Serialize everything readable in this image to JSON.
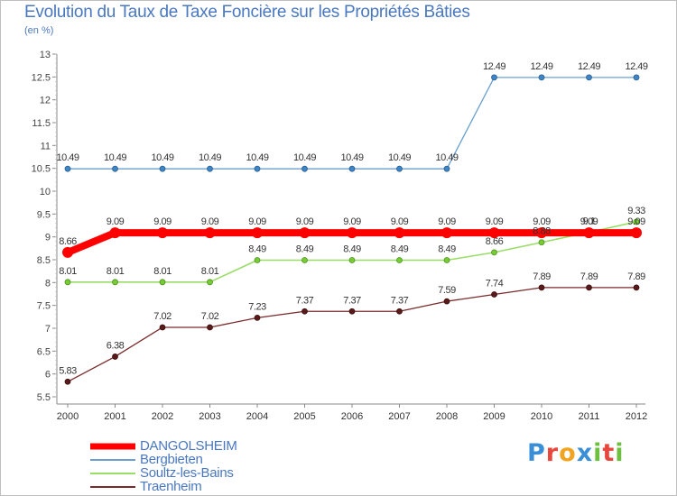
{
  "header": {
    "title": "Evolution du Taux de Taxe Foncière sur les Propriétés Bâties",
    "unit": "(en %)"
  },
  "logo": {
    "text": "Proxiti",
    "letters": [
      "P",
      "r",
      "o",
      "x",
      "i",
      "t",
      "i"
    ],
    "colors": [
      "#3a8fd6",
      "#e8483c",
      "#f2a31f",
      "#3a8fd6",
      "#6cbf3f",
      "#e8483c",
      "#6cbf3f"
    ]
  },
  "chart_data": {
    "type": "line",
    "title": "Evolution du Taux de Taxe Foncière sur les Propriétés Bâties",
    "ylabel": "(en %)",
    "xlabel": "",
    "ylim": [
      5.5,
      13
    ],
    "yticks": [
      "5.5",
      "6",
      "6.5",
      "7",
      "7.5",
      "8",
      "8.5",
      "9",
      "9.5",
      "10",
      "10.5",
      "11",
      "11.5",
      "12",
      "12.5",
      "13"
    ],
    "categories": [
      "2000",
      "2001",
      "2002",
      "2003",
      "2004",
      "2005",
      "2006",
      "2007",
      "2008",
      "2009",
      "2010",
      "2011",
      "2012"
    ],
    "grid": false,
    "series": [
      {
        "name": "DANGOLSHEIM",
        "color": "#ff0000",
        "values": [
          8.66,
          9.09,
          9.09,
          9.09,
          9.09,
          9.09,
          9.09,
          9.09,
          9.09,
          9.09,
          9.09,
          9.09,
          9.09
        ],
        "labels": [
          "8.66",
          "9.09",
          "9.09",
          "9.09",
          "9.09",
          "9.09",
          "9.09",
          "9.09",
          "9.09",
          "9.09",
          "9.09",
          "9.09",
          "9.09"
        ]
      },
      {
        "name": "Bergbieten",
        "color": "#6a9fcf",
        "values": [
          10.49,
          10.49,
          10.49,
          10.49,
          10.49,
          10.49,
          10.49,
          10.49,
          10.49,
          12.49,
          12.49,
          12.49,
          12.49
        ],
        "labels": [
          "10.49",
          "10.49",
          "10.49",
          "10.49",
          "10.49",
          "10.49",
          "10.49",
          "10.49",
          "10.49",
          "12.49",
          "12.49",
          "12.49",
          "12.49"
        ]
      },
      {
        "name": "Soultz-les-Bains",
        "color": "#99dd66",
        "values": [
          8.01,
          8.01,
          8.01,
          8.01,
          8.49,
          8.49,
          8.49,
          8.49,
          8.49,
          8.66,
          8.88,
          9.1,
          9.33
        ],
        "labels": [
          "8.01",
          "8.01",
          "8.01",
          "8.01",
          "8.49",
          "8.49",
          "8.49",
          "8.49",
          "8.49",
          "8.66",
          "8.88",
          "9.1",
          "9.33"
        ]
      },
      {
        "name": "Traenheim",
        "color": "#7a2a2a",
        "values": [
          5.83,
          6.38,
          7.02,
          7.02,
          7.23,
          7.37,
          7.37,
          7.37,
          7.59,
          7.74,
          7.89,
          7.89,
          7.89
        ],
        "labels": [
          "5.83",
          "6.38",
          "7.02",
          "7.02",
          "7.23",
          "7.37",
          "7.37",
          "7.37",
          "7.59",
          "7.74",
          "7.89",
          "7.89",
          "7.89"
        ]
      }
    ]
  }
}
